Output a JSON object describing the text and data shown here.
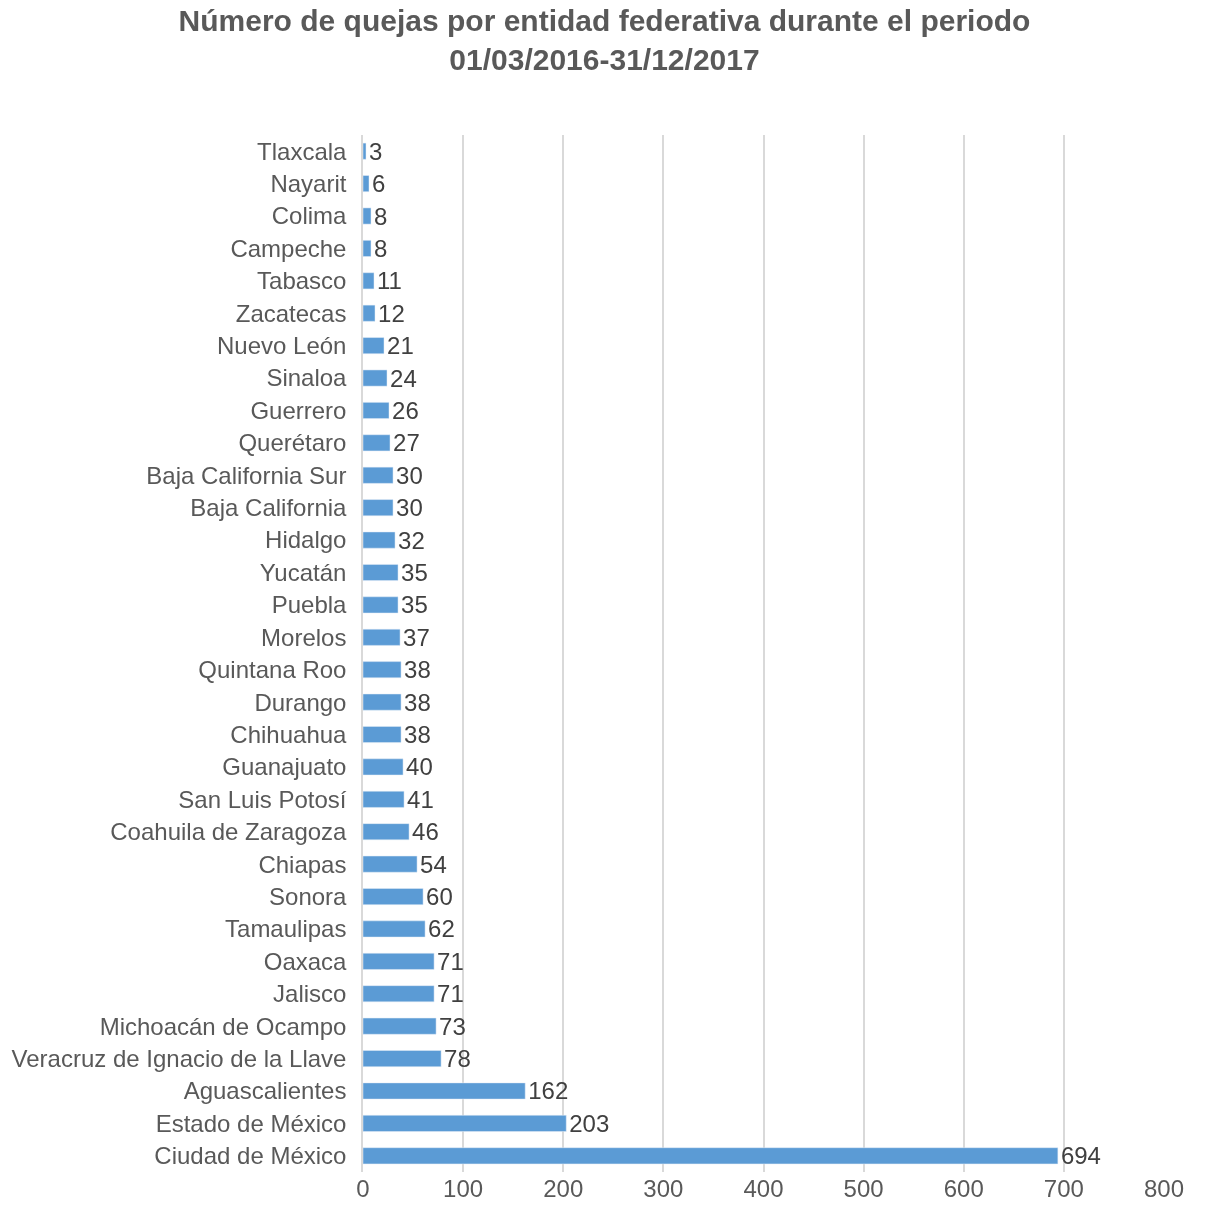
{
  "chart_data": {
    "type": "bar",
    "orientation": "horizontal",
    "title": "Número de quejas por entidad federativa durante el periodo\n01/03/2016-31/12/2017",
    "categories": [
      "Tlaxcala",
      "Nayarit",
      "Colima",
      "Campeche",
      "Tabasco",
      "Zacatecas",
      "Nuevo León",
      "Sinaloa",
      "Guerrero",
      "Querétaro",
      "Baja California Sur",
      "Baja California",
      "Hidalgo",
      "Yucatán",
      "Puebla",
      "Morelos",
      "Quintana Roo",
      "Durango",
      "Chihuahua",
      "Guanajuato",
      "San Luis Potosí",
      "Coahuila de Zaragoza",
      "Chiapas",
      "Sonora",
      "Tamaulipas",
      "Oaxaca",
      "Jalisco",
      "Michoacán de Ocampo",
      "Veracruz de Ignacio de la Llave",
      "Aguascalientes",
      "Estado de México",
      "Ciudad de México"
    ],
    "values": [
      3,
      6,
      8,
      8,
      11,
      12,
      21,
      24,
      26,
      27,
      30,
      30,
      32,
      35,
      35,
      37,
      38,
      38,
      38,
      40,
      41,
      46,
      54,
      60,
      62,
      71,
      71,
      73,
      78,
      162,
      203,
      694
    ],
    "color": "#5b9bd5",
    "data_labels": true,
    "xlim": [
      0,
      800
    ],
    "xticks": [
      0,
      100,
      200,
      300,
      400,
      500,
      600,
      700,
      800
    ],
    "grid": "x"
  }
}
